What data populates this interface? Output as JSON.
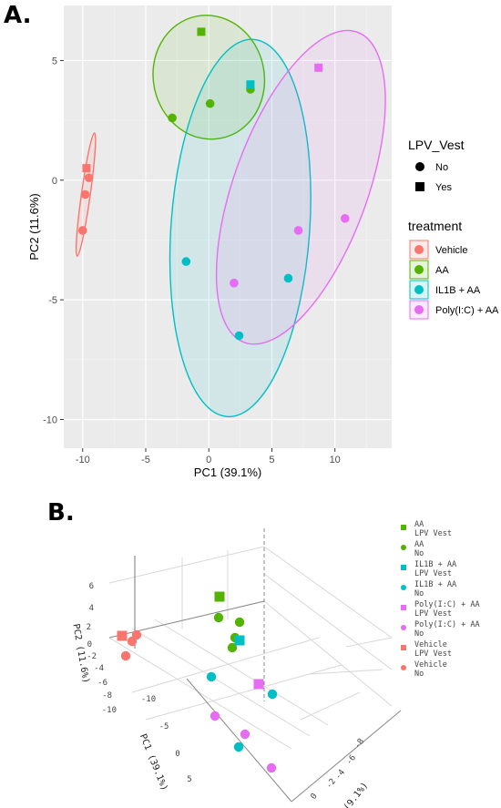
{
  "panel_a_label": "A.",
  "panel_b_label": "B.",
  "chart_data": [
    {
      "type": "scatter",
      "xlabel": "PC1 (39.1%)",
      "ylabel": "PC2 (11.6%)",
      "xlim": [
        -11.5,
        14.5
      ],
      "ylim": [
        -11.2,
        7.3
      ],
      "xticks": [
        "-10",
        "-5",
        "0",
        "5",
        "10"
      ],
      "xtick_values": [
        -10,
        -5,
        0,
        5,
        10
      ],
      "yticks": [
        "5",
        "0",
        "-5",
        "-10"
      ],
      "ytick_values": [
        5,
        0,
        -5,
        -10
      ],
      "grid": true,
      "legend_placement": "right",
      "shape_legend": {
        "title": "LPV_Vest",
        "items": [
          {
            "label": "No",
            "shape": "circle"
          },
          {
            "label": "Yes",
            "shape": "square"
          }
        ]
      },
      "color_legend": {
        "title": "treatment",
        "items": [
          {
            "label": "Vehicle",
            "color": "#f8766d"
          },
          {
            "label": "AA",
            "color": "#53b400"
          },
          {
            "label": "IL1B + AA",
            "color": "#00bfc4"
          },
          {
            "label": "Poly(I:C) + AA",
            "color": "#e76bf3"
          }
        ]
      },
      "series": [
        {
          "treatment": "Vehicle",
          "color": "#f8766d",
          "points": [
            {
              "x": -9.7,
              "y": 0.5,
              "shape": "square"
            },
            {
              "x": -9.5,
              "y": 0.1,
              "shape": "circle"
            },
            {
              "x": -9.8,
              "y": -0.6,
              "shape": "circle"
            },
            {
              "x": -10.0,
              "y": -2.1,
              "shape": "circle"
            }
          ],
          "ellipse": {
            "cx": -9.75,
            "cy": -0.6,
            "rx": 0.35,
            "ry": 2.6,
            "angle": 8
          }
        },
        {
          "treatment": "AA",
          "color": "#53b400",
          "points": [
            {
              "x": -0.6,
              "y": 6.2,
              "shape": "square"
            },
            {
              "x": -2.9,
              "y": 2.6,
              "shape": "circle"
            },
            {
              "x": 0.1,
              "y": 3.2,
              "shape": "circle"
            },
            {
              "x": 3.3,
              "y": 3.8,
              "shape": "circle"
            }
          ],
          "ellipse": {
            "cx": 0.0,
            "cy": 4.3,
            "rx": 4.4,
            "ry": 2.6,
            "angle": -12
          }
        },
        {
          "treatment": "IL1B + AA",
          "color": "#00bfc4",
          "points": [
            {
              "x": 3.3,
              "y": 4.0,
              "shape": "square"
            },
            {
              "x": -1.8,
              "y": -3.4,
              "shape": "circle"
            },
            {
              "x": 6.3,
              "y": -4.1,
              "shape": "circle"
            },
            {
              "x": 2.4,
              "y": -6.5,
              "shape": "circle"
            }
          ],
          "ellipse": {
            "cx": 2.5,
            "cy": -2.0,
            "rx": 5.5,
            "ry": 7.9,
            "angle": 4
          }
        },
        {
          "treatment": "Poly(I:C) + AA",
          "color": "#e76bf3",
          "points": [
            {
              "x": 8.7,
              "y": 4.7,
              "shape": "square"
            },
            {
              "x": 10.8,
              "y": -1.6,
              "shape": "circle"
            },
            {
              "x": 7.1,
              "y": -2.1,
              "shape": "circle"
            },
            {
              "x": 2.0,
              "y": -4.3,
              "shape": "circle"
            }
          ],
          "ellipse": {
            "cx": 7.3,
            "cy": -0.3,
            "rx": 5.3,
            "ry": 6.9,
            "angle": 20
          }
        }
      ]
    },
    {
      "type": "scatter",
      "dimension": "3d",
      "xlabel": "PC1 (39.1%)",
      "ylabel": "PC2 (11.6%)",
      "zlabel": "(9.1%)",
      "y_ticks": [
        "6",
        "4",
        "2",
        "0",
        "-2",
        "-4",
        "-6",
        "-8",
        "-10"
      ],
      "x_ticks": [
        "-10",
        "-5",
        "0",
        "5"
      ],
      "z_ticks": [
        "-8",
        "-6",
        "-4",
        "-2",
        "0"
      ],
      "legend": [
        {
          "label": "AA",
          "sublabel": "LPV Vest",
          "color": "#53b400",
          "shape": "square"
        },
        {
          "label": "AA",
          "sublabel": "No",
          "color": "#53b400",
          "shape": "circle"
        },
        {
          "label": "IL1B + AA",
          "sublabel": "LPV Vest",
          "color": "#00bfc4",
          "shape": "square"
        },
        {
          "label": "IL1B + AA",
          "sublabel": "No",
          "color": "#00bfc4",
          "shape": "circle"
        },
        {
          "label": "Poly(I:C) + AA",
          "sublabel": "LPV Vest",
          "color": "#e76bf3",
          "shape": "square"
        },
        {
          "label": "Poly(I:C) + AA",
          "sublabel": "No",
          "color": "#e76bf3",
          "shape": "circle"
        },
        {
          "label": "Vehicle",
          "sublabel": "LPV Vest",
          "color": "#f8766d",
          "shape": "square"
        },
        {
          "label": "Vehicle",
          "sublabel": "No",
          "color": "#f8766d",
          "shape": "circle"
        }
      ]
    }
  ]
}
